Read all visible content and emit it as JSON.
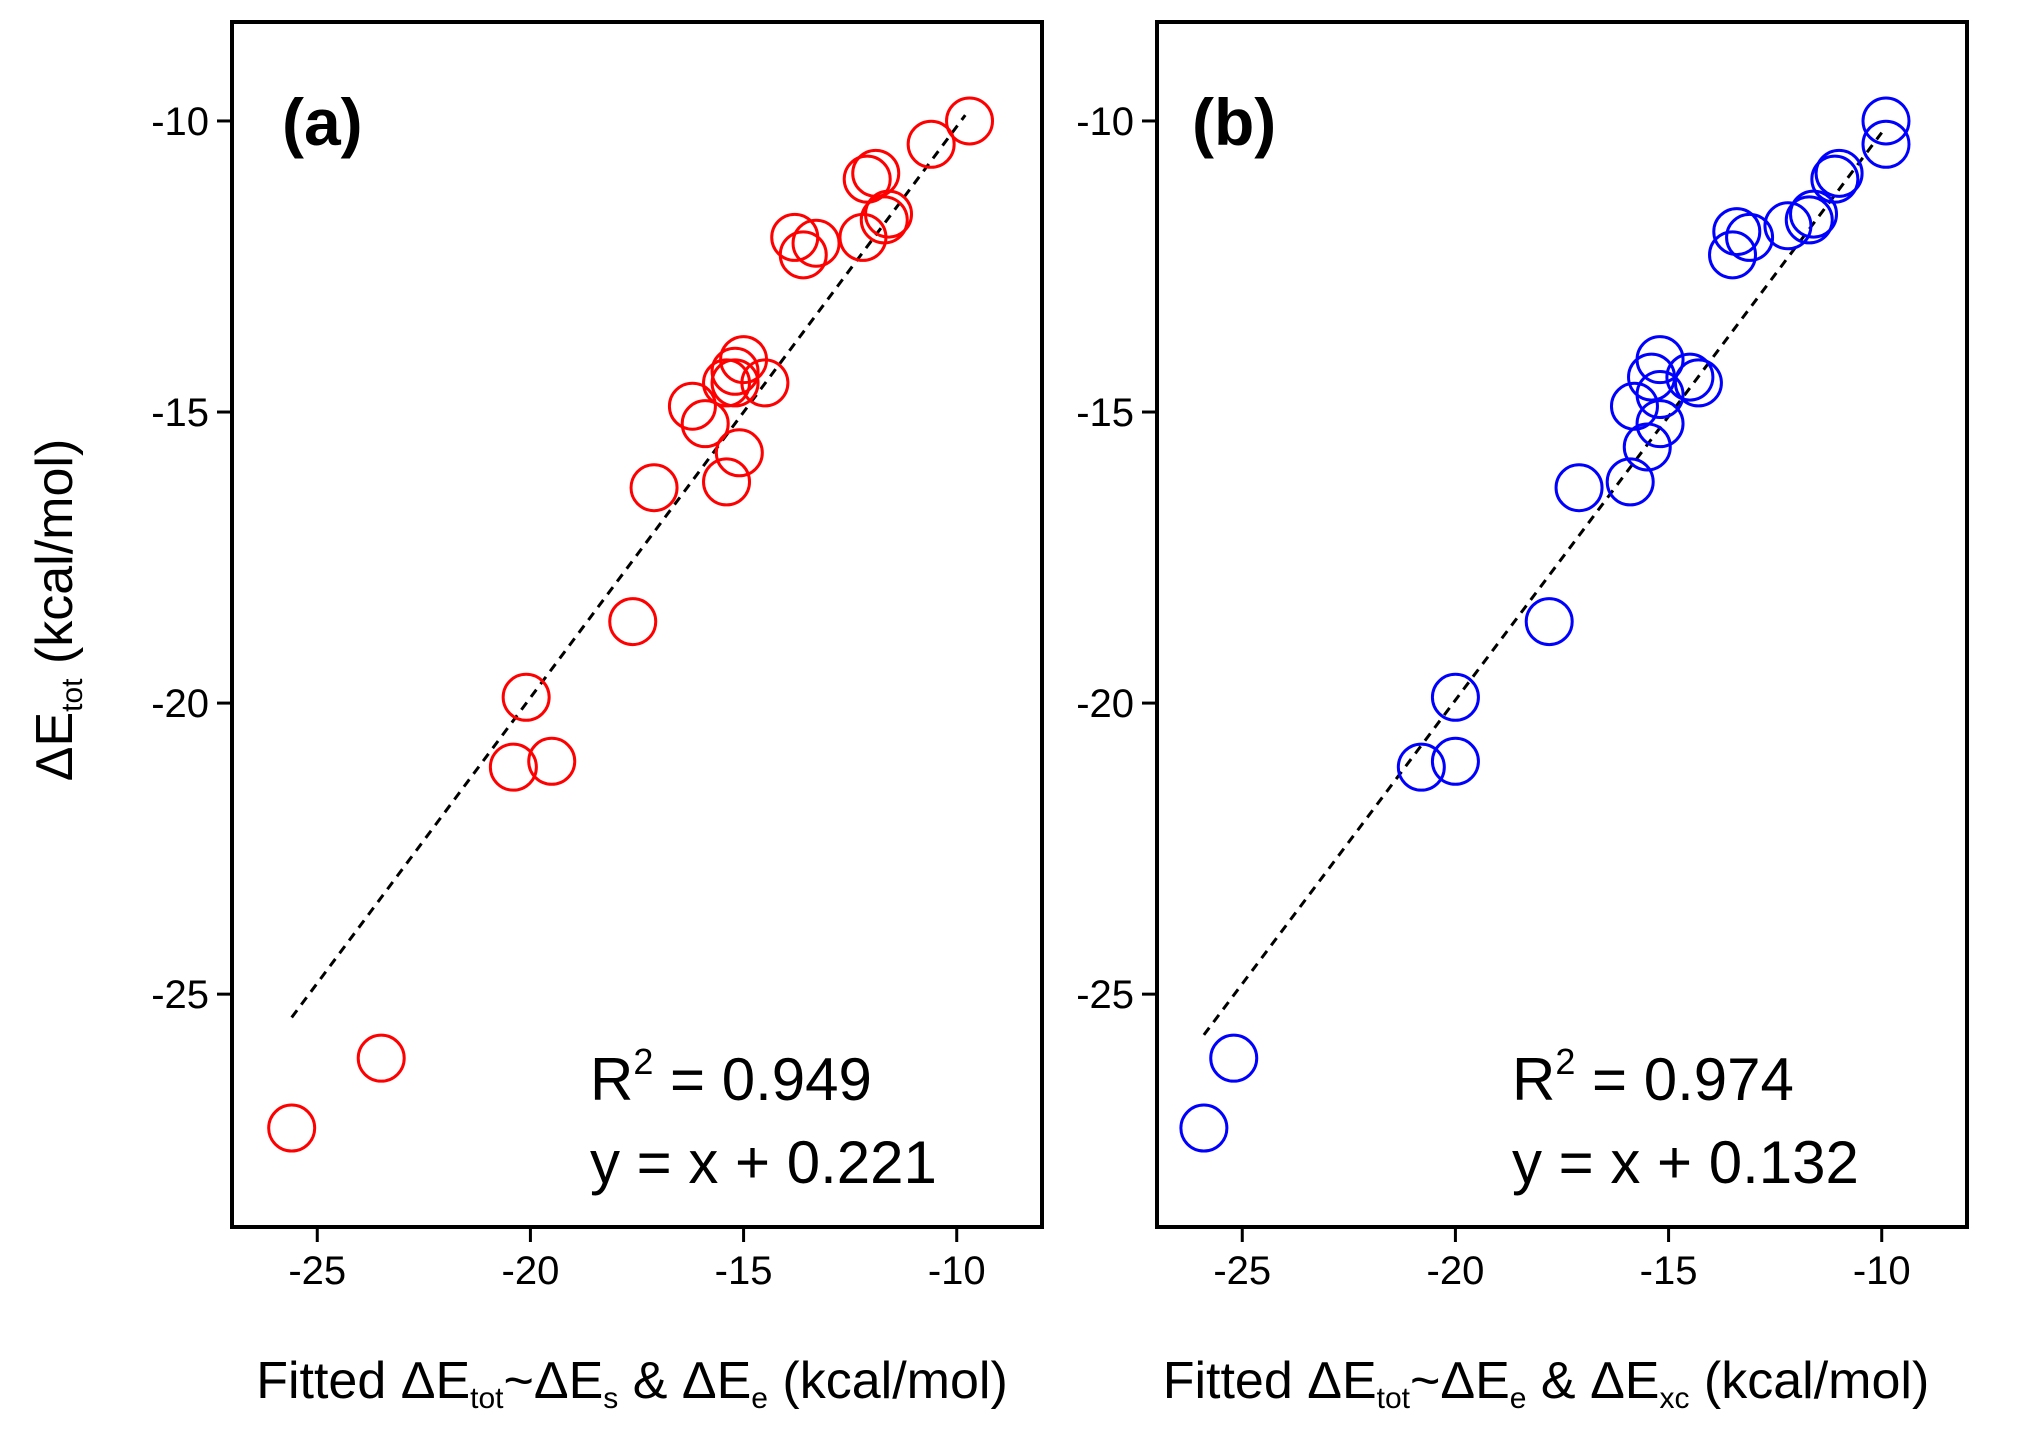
{
  "chart_data": [
    {
      "type": "scatter",
      "panel_label": "(a)",
      "marker_color": "#ff0000",
      "x_ticks": [
        "-25",
        "-20",
        "-15",
        "-10"
      ],
      "y_ticks": [
        "-10",
        "-15",
        "-20",
        "-25"
      ],
      "xlim": [
        -27,
        -8
      ],
      "ylim": [
        -29,
        -8.3
      ],
      "xlabel": {
        "prefix": "Fitted ΔE",
        "sub1": "tot",
        "mid1": "~ΔE",
        "sub2": "s",
        "mid2": " & ΔE",
        "sub3": "e",
        "suffix": " (kcal/mol)"
      },
      "ylabel": {
        "prefix": "ΔE",
        "sub": "tot",
        "suffix": " (kcal/mol)"
      },
      "annotation": {
        "r2_prefix": "R",
        "r2_sup": "2",
        "r2_value": " = 0.949",
        "equation": "y = x + 0.221"
      },
      "fit_line": {
        "x": [
          -25.6,
          -9.8
        ],
        "y": [
          -25.4,
          -9.9
        ]
      },
      "points": {
        "x": [
          -9.7,
          -10.6,
          -12.1,
          -11.9,
          -11.7,
          -11.6,
          -12.2,
          -13.8,
          -13.6,
          -13.3,
          -15.0,
          -15.2,
          -14.5,
          -15.4,
          -15.2,
          -16.2,
          -15.9,
          -15.1,
          -15.4,
          -17.1,
          -17.6,
          -20.1,
          -20.4,
          -19.5,
          -23.5,
          -25.6
        ],
        "y": [
          -10.0,
          -10.4,
          -11.0,
          -10.9,
          -11.7,
          -11.6,
          -12.0,
          -12.0,
          -12.3,
          -12.1,
          -14.1,
          -14.3,
          -14.5,
          -14.5,
          -14.5,
          -14.9,
          -15.2,
          -15.7,
          -16.2,
          -16.3,
          -18.6,
          -19.9,
          -21.1,
          -21.0,
          -26.1,
          -27.3
        ]
      }
    },
    {
      "type": "scatter",
      "panel_label": "(b)",
      "marker_color": "#0000ff",
      "x_ticks": [
        "-25",
        "-20",
        "-15",
        "-10"
      ],
      "y_ticks": [
        "-10",
        "-15",
        "-20",
        "-25"
      ],
      "xlim": [
        -27,
        -8
      ],
      "ylim": [
        -29,
        -8.3
      ],
      "xlabel": {
        "prefix": "Fitted ΔE",
        "sub1": "tot",
        "mid1": "~ΔE",
        "sub2": "e",
        "mid2": " & ΔE",
        "sub3": "xc",
        "suffix": " (kcal/mol)"
      },
      "annotation": {
        "r2_prefix": "R",
        "r2_sup": "2",
        "r2_value": " = 0.974",
        "equation": "y = x + 0.132"
      },
      "fit_line": {
        "x": [
          -25.9,
          -10.0
        ],
        "y": [
          -25.7,
          -10.2
        ]
      },
      "points": {
        "x": [
          -9.9,
          -9.9,
          -11.0,
          -11.1,
          -11.6,
          -11.7,
          -12.2,
          -13.4,
          -13.5,
          -13.1,
          -15.2,
          -15.4,
          -14.5,
          -14.3,
          -15.2,
          -15.8,
          -15.5,
          -15.2,
          -15.9,
          -17.1,
          -17.8,
          -20.0,
          -20.8,
          -20.0,
          -25.2,
          -25.9
        ],
        "y": [
          -10.0,
          -10.4,
          -10.9,
          -11.0,
          -11.6,
          -11.7,
          -11.8,
          -11.9,
          -12.3,
          -12.0,
          -14.1,
          -14.4,
          -14.4,
          -14.5,
          -14.7,
          -14.9,
          -15.6,
          -15.2,
          -16.2,
          -16.3,
          -18.6,
          -19.9,
          -21.1,
          -21.0,
          -26.1,
          -27.3
        ]
      }
    }
  ]
}
